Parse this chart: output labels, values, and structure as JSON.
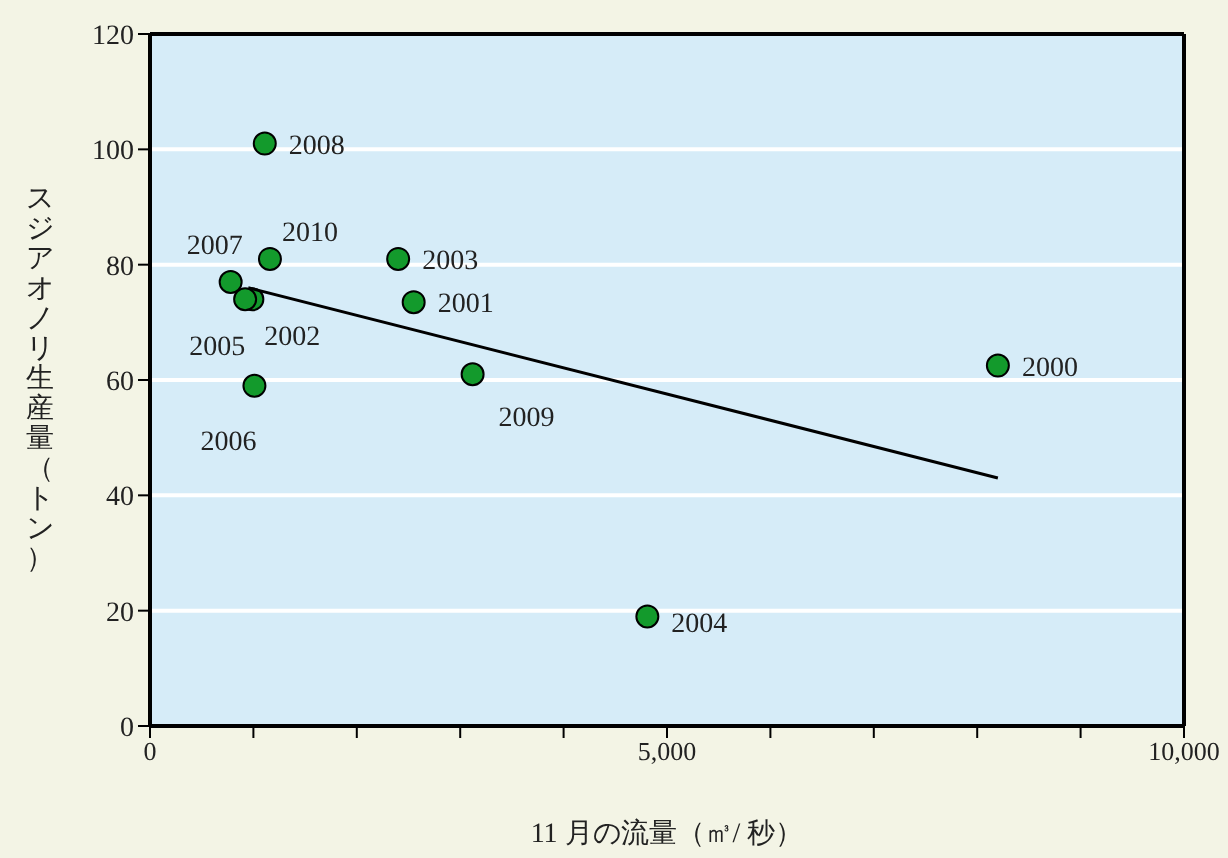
{
  "chart_data": {
    "type": "scatter",
    "xlabel": "11 月の流量（㎥/ 秒）",
    "ylabel": "スジアオノリ生産量（トン）",
    "xlim": [
      0,
      10000
    ],
    "ylim": [
      0,
      120
    ],
    "xticks": [
      0,
      {
        "value": 1000,
        "label": null
      },
      {
        "value": 2000,
        "label": null
      },
      {
        "value": 3000,
        "label": null
      },
      {
        "value": 4000,
        "label": null
      },
      {
        "value": 5000,
        "label": "5,000"
      },
      {
        "value": 6000,
        "label": null
      },
      {
        "value": 7000,
        "label": null
      },
      {
        "value": 8000,
        "label": null
      },
      {
        "value": 9000,
        "label": null
      },
      {
        "value": 10000,
        "label": "10,000"
      }
    ],
    "yticks": [
      0,
      20,
      40,
      60,
      80,
      100,
      120
    ],
    "grid": "y",
    "marker": "circle",
    "series": [
      {
        "type": "scatter",
        "color": "#139a2c",
        "x": [
          8200,
          2550,
          990,
          2400,
          4810,
          920,
          1010,
          780,
          1110,
          3120,
          1160
        ],
        "values": [
          62.5,
          73.5,
          74,
          81,
          19,
          74,
          59,
          77,
          101,
          61,
          81
        ]
      },
      {
        "type": "line",
        "color": "#000000",
        "marker": "none",
        "x": [
          950,
          8200
        ],
        "values": [
          76,
          43
        ]
      }
    ],
    "annotations": [
      {
        "text": "2000",
        "x": 8200,
        "y": 62.5
      },
      {
        "text": "2001",
        "x": 2550,
        "y": 73.5
      },
      {
        "text": "2002",
        "x": 990,
        "y": 74
      },
      {
        "text": "2003",
        "x": 2400,
        "y": 81
      },
      {
        "text": "2004",
        "x": 4810,
        "y": 19
      },
      {
        "text": "2005",
        "x": 920,
        "y": 74
      },
      {
        "text": "2006",
        "x": 1010,
        "y": 59
      },
      {
        "text": "2007",
        "x": 780,
        "y": 77
      },
      {
        "text": "2008",
        "x": 1110,
        "y": 101
      },
      {
        "text": "2009",
        "x": 3120,
        "y": 61
      },
      {
        "text": "2010",
        "x": 1160,
        "y": 81
      }
    ]
  }
}
